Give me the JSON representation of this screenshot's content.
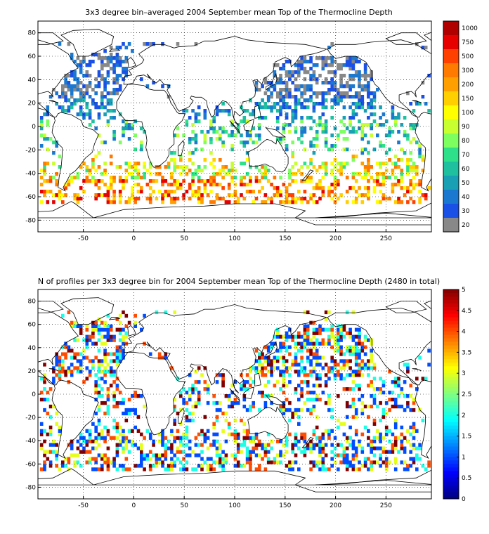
{
  "chart_data": [
    {
      "type": "heatmap",
      "title": "3x3 degree bin–averaged 2004 September mean Top of the Thermocline Depth",
      "xlim": [
        -95,
        295
      ],
      "ylim": [
        -90,
        90
      ],
      "x_ticks": [
        -50,
        0,
        50,
        100,
        150,
        200,
        250
      ],
      "y_ticks": [
        80,
        60,
        40,
        20,
        0,
        -20,
        -40,
        -60,
        -80
      ],
      "grid": true,
      "grid_style": "dotted",
      "bin_size_deg": 3,
      "colorbar": {
        "labels": [
          "1000",
          "750",
          "500",
          "300",
          "200",
          "150",
          "100",
          "90",
          "80",
          "70",
          "60",
          "50",
          "40",
          "30",
          "20"
        ],
        "colors": [
          "#b00000",
          "#e60000",
          "#ff4000",
          "#ff7a00",
          "#ff9f00",
          "#ffcf00",
          "#ffff00",
          "#c8ff30",
          "#7dff60",
          "#2fe08a",
          "#1fc0a0",
          "#1aa0b4",
          "#1a78d0",
          "#1a50e6",
          "#888888"
        ]
      }
    },
    {
      "type": "heatmap",
      "title": "N of profiles per 3x3 degree bin for 2004 September mean Top of the Thermocline Depth  (2480 in total)",
      "xlim": [
        -95,
        295
      ],
      "ylim": [
        -90,
        90
      ],
      "x_ticks": [
        -50,
        0,
        50,
        100,
        150,
        200,
        250
      ],
      "y_ticks": [
        80,
        60,
        40,
        20,
        0,
        -20,
        -40,
        -60,
        -80
      ],
      "grid": true,
      "grid_style": "dotted",
      "bin_size_deg": 3,
      "colorbar": {
        "labels": [
          "5",
          "4.5",
          "4",
          "3.5",
          "3",
          "2.5",
          "2",
          "1.5",
          "1",
          "0.5",
          "0"
        ],
        "scale": "jet",
        "range": [
          0,
          5
        ]
      }
    }
  ]
}
